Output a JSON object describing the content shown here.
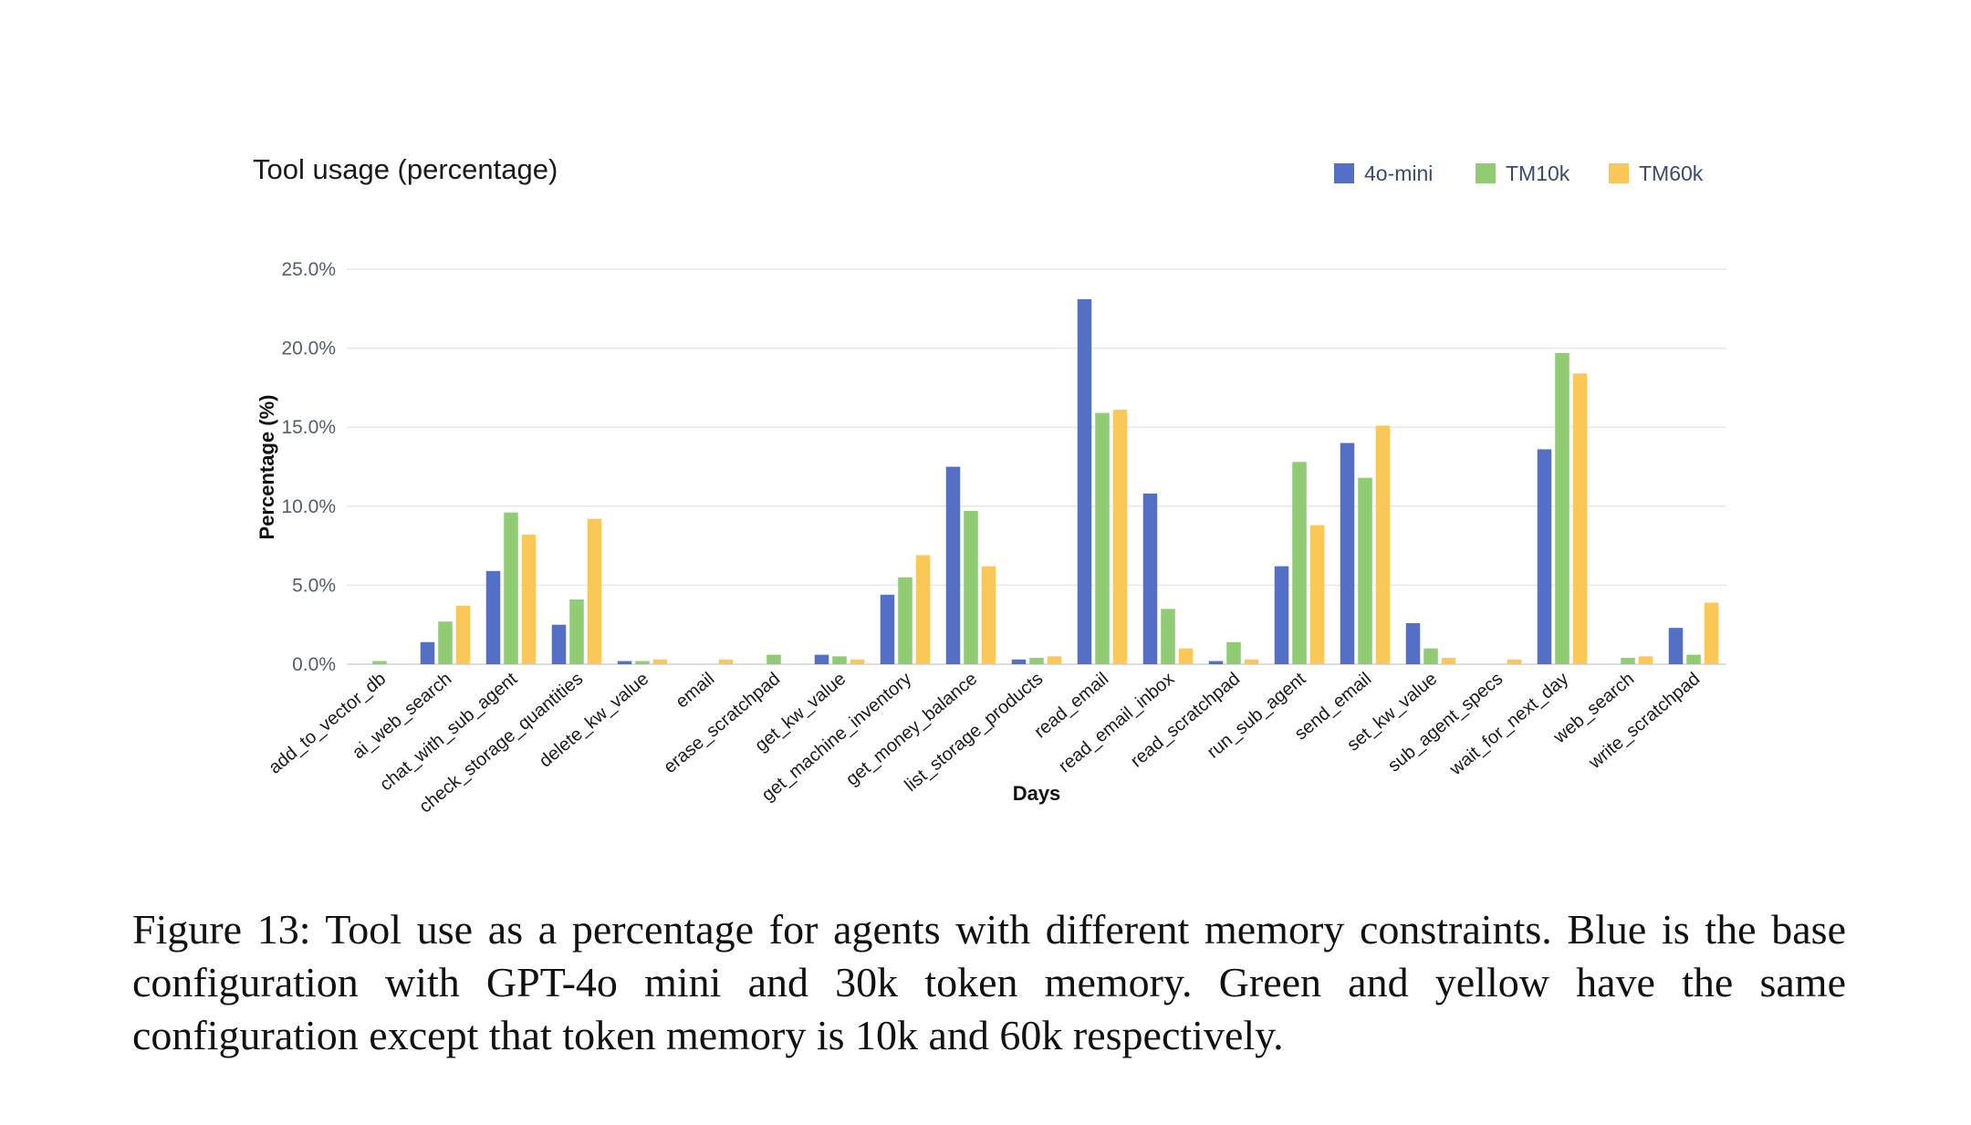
{
  "chart_data": {
    "type": "bar",
    "title": "Tool usage (percentage)",
    "xlabel": "Days",
    "ylabel": "Percentage (%)",
    "ylim": [
      0,
      25
    ],
    "yticks": [
      "0.0%",
      "5.0%",
      "10.0%",
      "15.0%",
      "20.0%",
      "25.0%"
    ],
    "grid": true,
    "legend_position": "top-right",
    "categories": [
      "add_to_vector_db",
      "ai_web_search",
      "chat_with_sub_agent",
      "check_storage_quantities",
      "delete_kw_value",
      "email",
      "erase_scratchpad",
      "get_kw_value",
      "get_machine_inventory",
      "get_money_balance",
      "list_storage_products",
      "read_email",
      "read_email_inbox",
      "read_scratchpad",
      "run_sub_agent",
      "send_email",
      "set_kw_value",
      "sub_agent_specs",
      "wait_for_next_day",
      "web_search",
      "write_scratchpad"
    ],
    "series": [
      {
        "name": "4o-mini",
        "color": "#5470c6",
        "values": [
          0,
          1.4,
          5.9,
          2.5,
          0.2,
          0,
          0,
          0.6,
          4.4,
          12.5,
          0.3,
          23.1,
          10.8,
          0.2,
          6.2,
          14.0,
          2.6,
          0,
          13.6,
          0,
          2.3
        ]
      },
      {
        "name": "TM10k",
        "color": "#91cc75",
        "values": [
          0.2,
          2.7,
          9.6,
          4.1,
          0.2,
          0,
          0.6,
          0.5,
          5.5,
          9.7,
          0.4,
          15.9,
          3.5,
          1.4,
          12.8,
          11.8,
          1.0,
          0,
          19.7,
          0.4,
          0.6
        ]
      },
      {
        "name": "TM60k",
        "color": "#fac858",
        "values": [
          0,
          3.7,
          8.2,
          9.2,
          0.3,
          0.3,
          0,
          0.3,
          6.9,
          6.2,
          0.5,
          16.1,
          1.0,
          0.3,
          8.8,
          15.1,
          0.4,
          0.3,
          18.4,
          0.5,
          3.9
        ]
      }
    ]
  },
  "caption": "Figure 13: Tool use as a percentage for agents with different memory constraints. Blue is the base configuration with GPT-4o mini and 30k token memory. Green and yellow have the same configuration except that token memory is 10k and 60k respectively."
}
